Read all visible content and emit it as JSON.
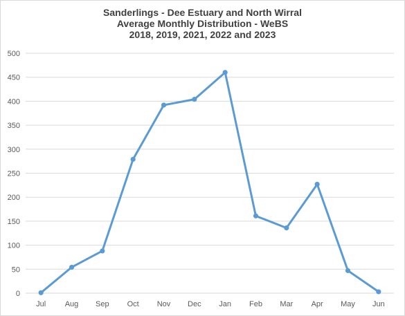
{
  "chart_data": {
    "type": "line",
    "title_lines": [
      "Sanderlings - Dee Estuary and North Wirral",
      "Average Monthly Distribution - WeBS",
      "2018, 2019, 2021, 2022 and 2023"
    ],
    "categories": [
      "Jul",
      "Aug",
      "Sep",
      "Oct",
      "Nov",
      "Dec",
      "Jan",
      "Feb",
      "Mar",
      "Apr",
      "May",
      "Jun"
    ],
    "values": [
      1,
      54,
      88,
      279,
      392,
      404,
      460,
      161,
      136,
      227,
      47,
      3
    ],
    "ylim": [
      0,
      500
    ],
    "yticks": [
      0,
      50,
      100,
      150,
      200,
      250,
      300,
      350,
      400,
      450,
      500
    ],
    "grid": true,
    "legend": "none",
    "colors": {
      "line": "#5b9bd5",
      "grid": "#d9d9d9",
      "text": "#595959"
    }
  }
}
